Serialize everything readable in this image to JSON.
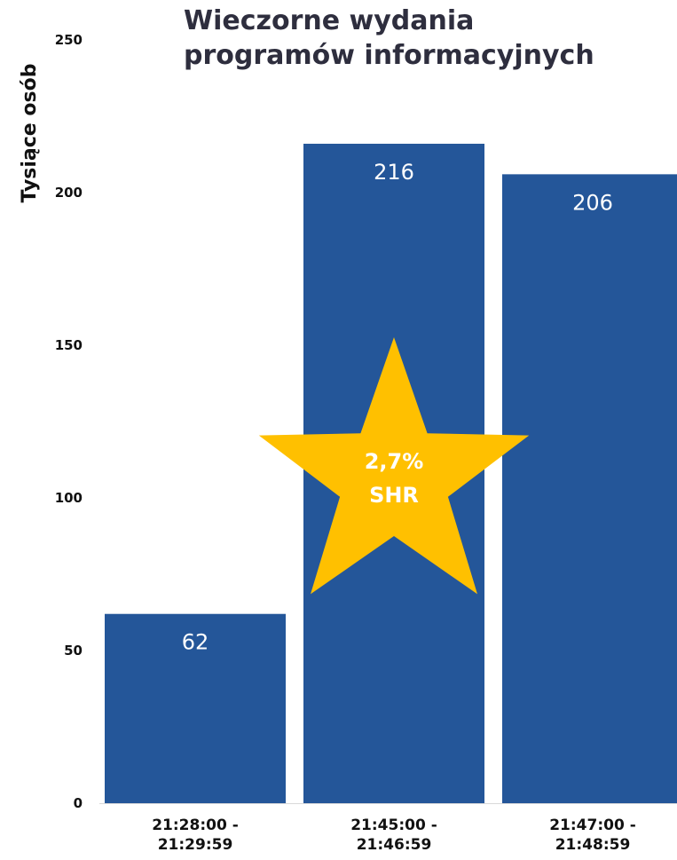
{
  "chart_data": {
    "type": "bar",
    "title_lines": [
      "Wieczorne wydania",
      "programów informacyjnych"
    ],
    "ylabel": "Tysiące osób",
    "xlabel": "",
    "ylim": [
      0,
      250
    ],
    "yticks": [
      0,
      50,
      100,
      150,
      200,
      250
    ],
    "grid": false,
    "categories": [
      [
        "21:28:00 -",
        "21:29:59"
      ],
      [
        "21:45:00 -",
        "21:46:59"
      ],
      [
        "21:47:00 -",
        "21:48:59"
      ]
    ],
    "values": [
      62,
      216,
      206
    ],
    "data_labels": [
      "62",
      "216",
      "206"
    ],
    "bar_color": "#245699",
    "annotation": {
      "shape": "star",
      "color": "#FFC000",
      "lines": [
        "2,7%",
        "SHR"
      ],
      "category_index": 1
    }
  }
}
